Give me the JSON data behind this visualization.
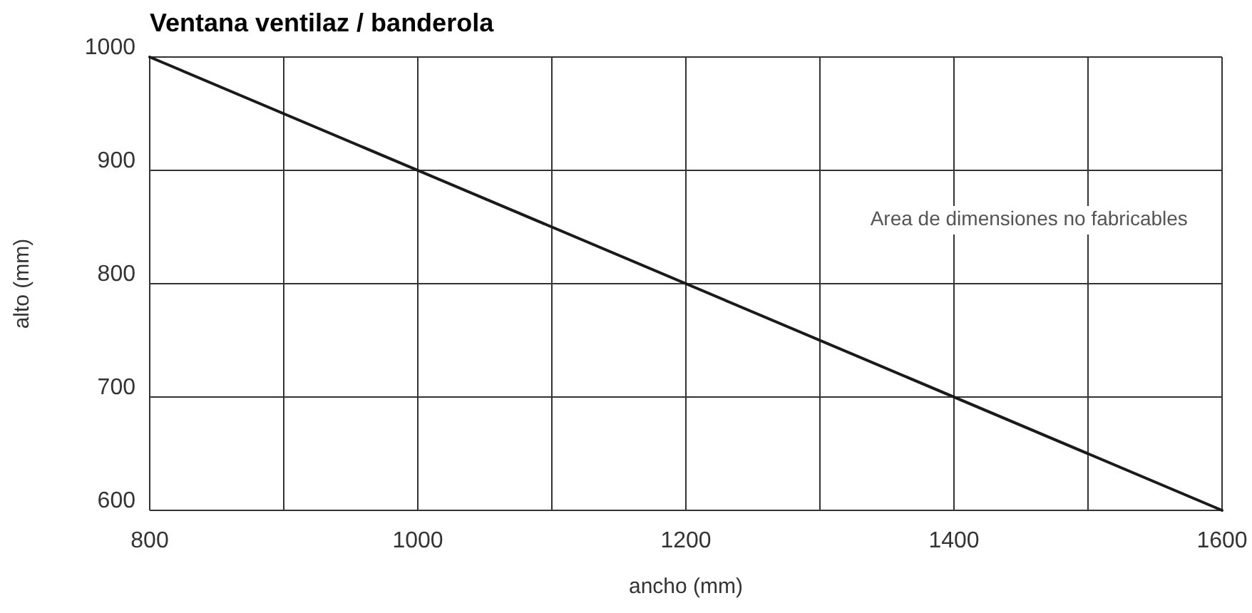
{
  "chart_data": {
    "type": "line",
    "title": "Ventana ventilaz / banderola",
    "xlabel": "ancho (mm)",
    "ylabel": "alto (mm)",
    "x": [
      800,
      1600
    ],
    "series": [
      {
        "color": "#1a1a1a",
        "values": [
          1000,
          600
        ]
      }
    ],
    "xlim": [
      800,
      1600
    ],
    "ylim": [
      600,
      1000
    ],
    "xticks": [
      800,
      {
        "value": 900,
        "label": null
      },
      1000,
      {
        "value": 1100,
        "label": null
      },
      1200,
      {
        "value": 1300,
        "label": null
      },
      1400,
      {
        "value": 1500,
        "label": null
      },
      1600
    ],
    "yticks": [
      600,
      700,
      800,
      900,
      1000
    ],
    "grid": true,
    "marker": "none",
    "line_style": "solid",
    "annotations": [
      "Area de dimensiones no fabricables"
    ]
  }
}
